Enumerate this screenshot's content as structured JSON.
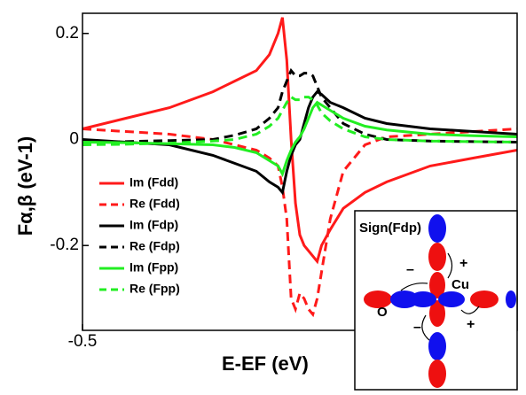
{
  "chart_data": {
    "type": "line",
    "xlabel": "E-EF (eV)",
    "ylabel": "Fα,β (eV-1)",
    "x": [
      -0.5,
      -0.4,
      -0.3,
      -0.2,
      -0.15,
      -0.1,
      -0.07,
      -0.05,
      -0.04,
      -0.03,
      -0.02,
      -0.01,
      0,
      0.01,
      0.02,
      0.03,
      0.04,
      0.05,
      0.07,
      0.1,
      0.15,
      0.2,
      0.3,
      0.4,
      0.5
    ],
    "xlim": [
      -0.5,
      0.5
    ],
    "xticks": [
      -0.5
    ],
    "ylim": [
      -0.36,
      0.238
    ],
    "yticks": [
      0.2,
      0,
      -0.2
    ],
    "legend": "left",
    "series": [
      {
        "name": "Im (Fdd)",
        "color": "#ff1a1a",
        "linestyle": "solid",
        "values": [
          0.02,
          0.04,
          0.06,
          0.09,
          0.11,
          0.13,
          0.16,
          0.2,
          0.23,
          0.15,
          0.0,
          -0.12,
          -0.18,
          -0.2,
          -0.21,
          -0.22,
          -0.23,
          -0.2,
          -0.17,
          -0.13,
          -0.1,
          -0.08,
          -0.05,
          -0.035,
          -0.02
        ]
      },
      {
        "name": "Re (Fdd)",
        "color": "#ff1a1a",
        "linestyle": "dashed",
        "values": [
          0.02,
          0.015,
          0.01,
          0.0,
          -0.01,
          -0.02,
          -0.035,
          -0.05,
          -0.09,
          -0.15,
          -0.3,
          -0.32,
          -0.29,
          -0.3,
          -0.32,
          -0.33,
          -0.3,
          -0.25,
          -0.15,
          -0.06,
          -0.01,
          0.005,
          0.01,
          0.015,
          0.02
        ]
      },
      {
        "name": "Im (Fdp)",
        "color": "#000000",
        "linestyle": "solid",
        "values": [
          0.0,
          -0.005,
          -0.01,
          -0.03,
          -0.045,
          -0.06,
          -0.08,
          -0.09,
          -0.1,
          -0.06,
          -0.03,
          -0.01,
          0.0,
          0.03,
          0.06,
          0.08,
          0.09,
          0.085,
          0.07,
          0.06,
          0.04,
          0.03,
          0.02,
          0.015,
          0.01
        ]
      },
      {
        "name": "Re (Fdp)",
        "color": "#000000",
        "linestyle": "dashed",
        "values": [
          -0.005,
          -0.004,
          -0.002,
          0.0,
          0.008,
          0.02,
          0.04,
          0.06,
          0.09,
          0.11,
          0.13,
          0.12,
          0.12,
          0.125,
          0.125,
          0.12,
          0.1,
          0.08,
          0.06,
          0.03,
          0.01,
          0.0,
          -0.003,
          -0.004,
          -0.005
        ]
      },
      {
        "name": "Im (Fpp)",
        "color": "#22ee22",
        "linestyle": "solid",
        "values": [
          -0.005,
          -0.006,
          -0.008,
          -0.01,
          -0.015,
          -0.025,
          -0.04,
          -0.05,
          -0.065,
          -0.04,
          -0.02,
          -0.005,
          0.005,
          0.02,
          0.04,
          0.06,
          0.07,
          0.065,
          0.055,
          0.04,
          0.025,
          0.018,
          0.01,
          0.007,
          0.005
        ]
      },
      {
        "name": "Re (Fpp)",
        "color": "#22ee22",
        "linestyle": "dashed",
        "values": [
          -0.01,
          -0.009,
          -0.007,
          -0.003,
          0.0,
          0.01,
          0.025,
          0.04,
          0.055,
          0.07,
          0.08,
          0.075,
          0.075,
          0.08,
          0.08,
          0.075,
          0.065,
          0.05,
          0.035,
          0.02,
          0.005,
          0.0,
          -0.003,
          -0.004,
          -0.005
        ]
      }
    ]
  },
  "inset": {
    "title": "Sign(Fdp)",
    "cu": "Cu",
    "o": "O",
    "plus": "+",
    "minus": "–"
  }
}
